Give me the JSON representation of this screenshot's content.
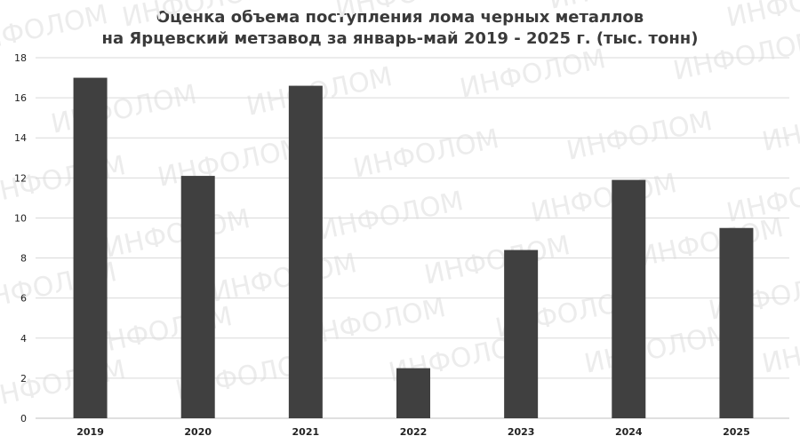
{
  "chart_data": {
    "type": "bar",
    "title_line1": "Оценка объема поступления лома черных металлов",
    "title_line2": "на Ярцевский метзавод за январь-май 2019 - 2025 г. (тыс. тонн)",
    "categories": [
      "2019",
      "2020",
      "2021",
      "2022",
      "2023",
      "2024",
      "2025"
    ],
    "values": [
      17.0,
      12.1,
      16.6,
      2.5,
      8.4,
      11.9,
      9.5
    ],
    "ylim": [
      0,
      18
    ],
    "yticks": [
      0,
      2,
      4,
      6,
      8,
      10,
      12,
      14,
      16,
      18
    ],
    "grid": true,
    "bar_color": "#404040",
    "grid_color": "#d9d9d9",
    "watermark": "ИНФОЛОМ"
  }
}
